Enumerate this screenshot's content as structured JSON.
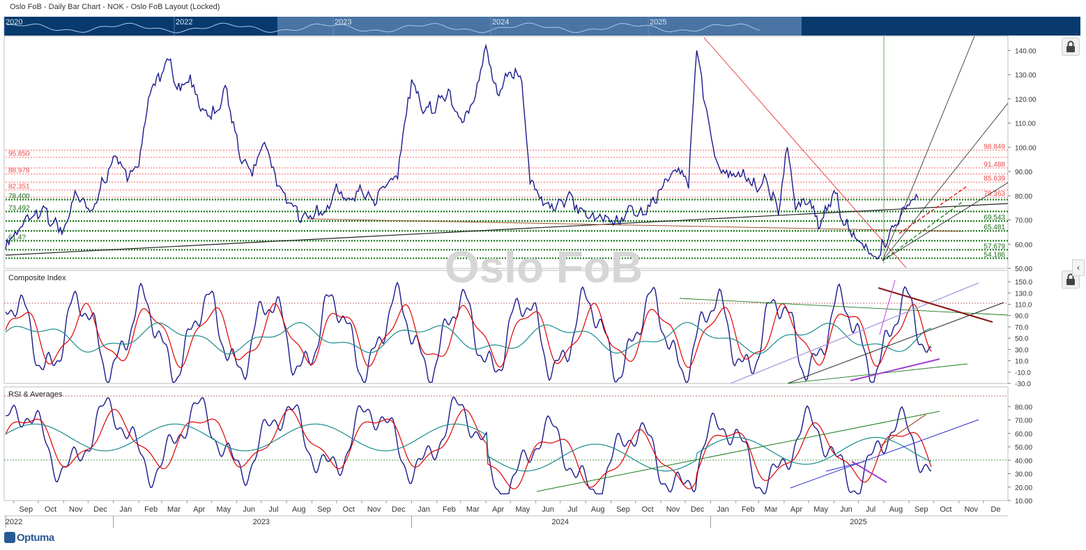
{
  "window": {
    "title": "Oslo FoB - Daily Bar Chart - NOK - Oslo FoB Layout (Locked)",
    "watermark": "Oslo FoB",
    "logo": "Optuma"
  },
  "navigator": {
    "year_labels": [
      "2020",
      "2022",
      "2023",
      "2024",
      "2025"
    ]
  },
  "icons": [
    "lock-icon",
    "lock-icon",
    "chevron-left-icon"
  ],
  "colors": {
    "price": "#1a1a8c",
    "fast_avg": "#e00000",
    "slow_avg": "#1a8c8c",
    "support": "#1a7a1a",
    "resistance": "#ff5050",
    "navigator_bg": "#083a6e"
  },
  "chart_data": [
    {
      "type": "line",
      "name": "price-panel",
      "ylim": [
        50,
        145
      ],
      "yticks": [
        "140.00",
        "130.00",
        "120.00",
        "110.00",
        "100.00",
        "90.00",
        "80.00",
        "70.00",
        "60.00",
        "50.00"
      ],
      "price": {
        "points": [
          [
            "2022-08-22",
            58
          ],
          [
            "2022-09-05",
            64
          ],
          [
            "2022-09-20",
            70
          ],
          [
            "2022-10-05",
            74
          ],
          [
            "2022-10-20",
            69
          ],
          [
            "2022-11-01",
            66
          ],
          [
            "2022-11-15",
            82
          ],
          [
            "2022-11-25",
            79
          ],
          [
            "2022-12-05",
            74
          ],
          [
            "2022-12-20",
            86
          ],
          [
            "2023-01-05",
            96
          ],
          [
            "2023-01-18",
            86
          ],
          [
            "2023-02-01",
            92
          ],
          [
            "2023-02-15",
            122
          ],
          [
            "2023-03-01",
            130
          ],
          [
            "2023-03-10",
            136
          ],
          [
            "2023-03-20",
            124
          ],
          [
            "2023-04-05",
            130
          ],
          [
            "2023-04-20",
            116
          ],
          [
            "2023-05-05",
            114
          ],
          [
            "2023-05-20",
            124
          ],
          [
            "2023-06-05",
            95
          ],
          [
            "2023-06-20",
            88
          ],
          [
            "2023-07-05",
            102
          ],
          [
            "2023-07-20",
            84
          ],
          [
            "2023-08-05",
            77
          ],
          [
            "2023-08-20",
            71
          ],
          [
            "2023-09-05",
            73
          ],
          [
            "2023-09-20",
            76
          ],
          [
            "2023-10-01",
            85
          ],
          [
            "2023-10-15",
            79
          ],
          [
            "2023-11-01",
            82
          ],
          [
            "2023-11-15",
            78
          ],
          [
            "2023-12-01",
            84
          ],
          [
            "2023-12-15",
            87
          ],
          [
            "2024-01-01",
            128
          ],
          [
            "2024-01-15",
            114
          ],
          [
            "2024-02-01",
            118
          ],
          [
            "2024-02-15",
            124
          ],
          [
            "2024-03-01",
            112
          ],
          [
            "2024-03-15",
            118
          ],
          [
            "2024-04-01",
            142
          ],
          [
            "2024-04-15",
            122
          ],
          [
            "2024-05-01",
            131
          ],
          [
            "2024-05-15",
            127
          ],
          [
            "2024-05-25",
            85
          ],
          [
            "2024-06-10",
            76
          ],
          [
            "2024-06-25",
            74
          ],
          [
            "2024-07-10",
            80
          ],
          [
            "2024-07-25",
            75
          ],
          [
            "2024-08-10",
            73
          ],
          [
            "2024-08-25",
            72
          ],
          [
            "2024-09-10",
            69
          ],
          [
            "2024-09-25",
            76
          ],
          [
            "2024-10-10",
            72
          ],
          [
            "2024-10-25",
            77
          ],
          [
            "2024-11-10",
            86
          ],
          [
            "2024-11-25",
            89
          ],
          [
            "2024-12-05",
            83
          ],
          [
            "2024-12-15",
            140
          ],
          [
            "2024-12-25",
            118
          ],
          [
            "2025-01-10",
            93
          ],
          [
            "2025-01-25",
            90
          ],
          [
            "2025-02-10",
            91
          ],
          [
            "2025-02-25",
            84
          ],
          [
            "2025-03-10",
            87
          ],
          [
            "2025-03-25",
            72
          ],
          [
            "2025-04-05",
            100
          ],
          [
            "2025-04-15",
            74
          ],
          [
            "2025-05-01",
            77
          ],
          [
            "2025-05-15",
            67
          ],
          [
            "2025-06-01",
            82
          ],
          [
            "2025-06-15",
            68
          ],
          [
            "2025-06-25",
            65
          ],
          [
            "2025-07-10",
            60
          ],
          [
            "2025-07-20",
            55
          ],
          [
            "2025-08-01",
            60
          ],
          [
            "2025-08-15",
            68
          ],
          [
            "2025-09-01",
            76
          ],
          [
            "2025-09-12",
            79
          ]
        ]
      },
      "resistance_levels": {
        "labels": [
          "95.850",
          "88.978",
          "82.351",
          "98.849",
          "91.488",
          "85.639",
          "79.363"
        ],
        "values": [
          95.85,
          88.978,
          82.351,
          98.849,
          91.488,
          85.639,
          79.363
        ]
      },
      "support_levels": {
        "labels": [
          "78.400",
          "73.492",
          "69.543",
          "65.481",
          "61.4?",
          "57.679",
          "54.186"
        ],
        "values": [
          78.4,
          73.492,
          69.543,
          65.481,
          61.4,
          57.679,
          54.186
        ]
      }
    },
    {
      "type": "line",
      "name": "Composite Index",
      "title": "Composite Index",
      "ylim": [
        -30,
        160
      ],
      "yticks": [
        "150.0",
        "130.0",
        "110.0",
        "90.0",
        "70.0",
        "50.0",
        "30.0",
        "10.0",
        "-10.0",
        "-30.0"
      ],
      "reference_line": 110
    },
    {
      "type": "line",
      "name": "RSI & Averages",
      "title": "RSI & Averages",
      "ylim": [
        10,
        90
      ],
      "yticks": [
        "80.00",
        "70.00",
        "60.00",
        "50.00",
        "40.00",
        "30.00",
        "20.00",
        "10.00"
      ],
      "reference_lines": [
        87,
        40
      ]
    }
  ],
  "x_axis": {
    "months": [
      "Sep",
      "Oct",
      "Nov",
      "Dec",
      "Jan",
      "Feb",
      "Mar",
      "Apr",
      "May",
      "Jun",
      "Jul",
      "Aug",
      "Sep",
      "Oct",
      "Nov",
      "Dec",
      "Jan",
      "Feb",
      "Mar",
      "Apr",
      "May",
      "Jun",
      "Jul",
      "Aug",
      "Sep",
      "Oct",
      "Nov",
      "Dec",
      "Jan",
      "Feb",
      "Mar",
      "Apr",
      "May",
      "Jun",
      "Jul",
      "Aug",
      "Sep",
      "Oct",
      "Nov",
      "De"
    ],
    "years": [
      "2022",
      "2023",
      "2024",
      "2025"
    ]
  }
}
